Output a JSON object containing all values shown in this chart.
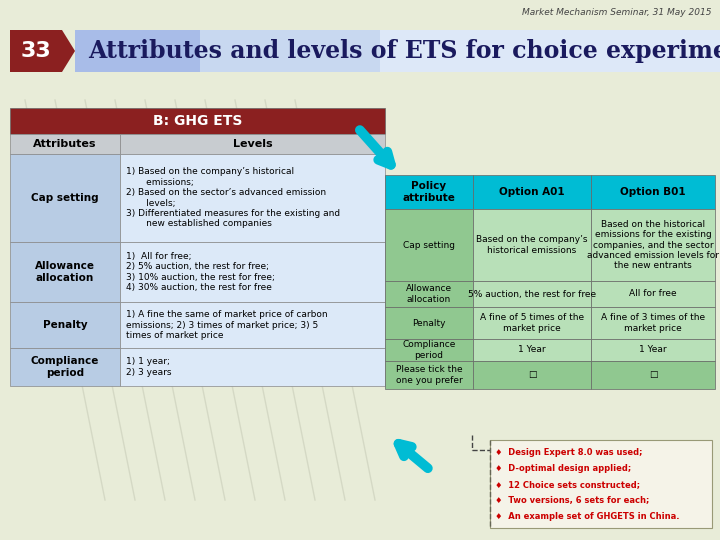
{
  "header_text": "Market Mechanism Seminar, 31 May 2015",
  "slide_number": "33",
  "title": "Attributes and levels of ETS for choice experiment",
  "left_table_header": "B: GHG ETS",
  "left_col1_header": "Attributes",
  "left_col2_header": "Levels",
  "left_rows": [
    {
      "attr": "Cap setting",
      "levels": "1) Based on the company’s historical\n       emissions;\n2) Based on the sector’s advanced emission\n       levels;\n3) Differentiated measures for the existing and\n       new established companies"
    },
    {
      "attr": "Allowance\nallocation",
      "levels": "1)  All for free;\n2) 5% auction, the rest for free;\n3) 10% auction, the rest for free;\n4) 30% auction, the rest for free"
    },
    {
      "attr": "Penalty",
      "levels": "1) A fine the same of market price of carbon\nemissions; 2) 3 times of market price; 3) 5\ntimes of market price"
    },
    {
      "attr": "Compliance\nperiod",
      "levels": "1) 1 year;\n2) 3 years"
    }
  ],
  "right_table_headers": [
    "Policy\nattribute",
    "Option A01",
    "Option B01"
  ],
  "right_rows": [
    {
      "attr": "Cap setting",
      "optA": "Based on the company’s\nhistorical emissions",
      "optB": "Based on the historical\nemissions for the existing\ncompanies, and the sector\nadvanced emission levels for\nthe new entrants"
    },
    {
      "attr": "Allowance\nallocation",
      "optA": "5% auction, the rest for free",
      "optB": "All for free"
    },
    {
      "attr": "Penalty",
      "optA": "A fine of 5 times of the\nmarket price",
      "optB": "A fine of 3 times of the\nmarket price"
    },
    {
      "attr": "Compliance\nperiod",
      "optA": "1 Year",
      "optB": "1 Year"
    },
    {
      "attr": "Please tick the\none you prefer",
      "optA": "□",
      "optB": "□"
    }
  ],
  "bullet_notes": [
    "Design Expert 8.0 was used;",
    "D-optimal design applied;",
    "12 Choice sets constructed;",
    "Two versions, 6 sets for each;",
    "An example set of GHGETS in China."
  ],
  "colors": {
    "background": "#e8ecd8",
    "slide_num_bg": "#8B2020",
    "title_bg_left": "#b0bce0",
    "title_bg_right": "#dde4f0",
    "title_text": "#1a1a5e",
    "left_header_bg": "#8B2020",
    "left_header_text": "#ffffff",
    "left_col_header_bg": "#c8ccd0",
    "left_row_attr_bg": "#b8cce4",
    "left_row_levels_bg": "#dce9f8",
    "right_header_bg": "#00bcd4",
    "right_header_text": "#000000",
    "right_row_attr_bg": "#90c890",
    "right_row_data_bg": "#b8e0b8",
    "right_row_last_bg": "#90c890",
    "bullet_text": "#cc0000",
    "watermark_lines": "#c8ccb8",
    "arrow_color": "#00bcd4"
  }
}
